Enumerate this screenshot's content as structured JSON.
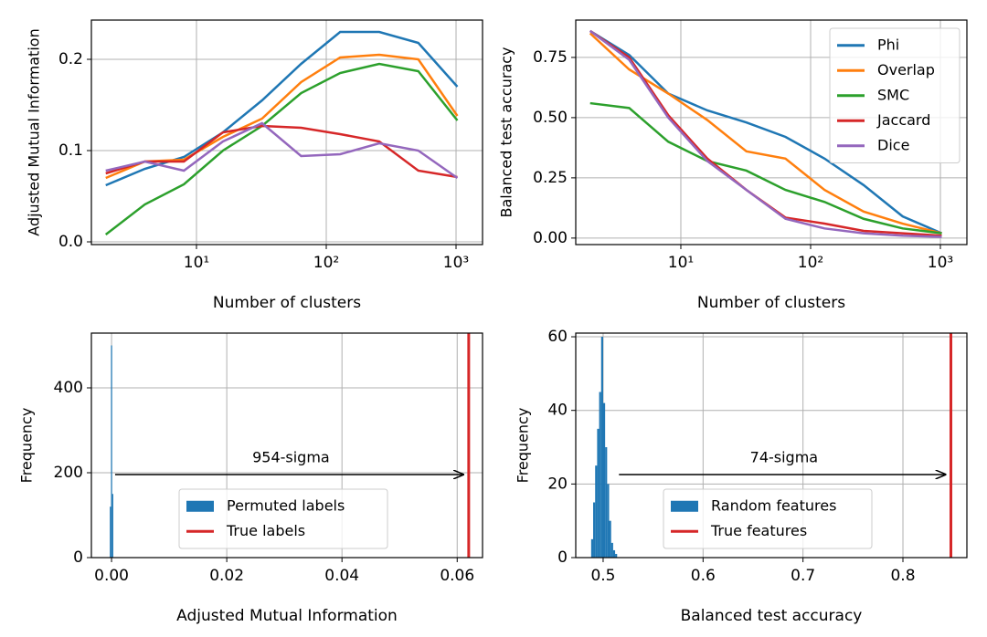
{
  "chart_data": [
    {
      "type": "line",
      "xscale": "log",
      "grid": true,
      "x_label": "Number of clusters",
      "y_label": "Adjusted Mutual Information",
      "xlim": [
        1.55,
        1600
      ],
      "ylim": [
        -0.003,
        0.243
      ],
      "xticks": [
        {
          "value": 10,
          "label": "10¹"
        },
        {
          "value": 100,
          "label": "10²"
        },
        {
          "value": 1000,
          "label": "10³"
        }
      ],
      "yticks": [
        {
          "value": 0,
          "label": "0.0"
        },
        0.1,
        0.2
      ],
      "x": [
        2,
        4,
        8,
        16,
        32,
        64,
        128,
        256,
        512,
        1024
      ],
      "series": [
        {
          "name": "Phi",
          "color": "#1f77b4",
          "values": [
            0.062,
            0.08,
            0.093,
            0.12,
            0.155,
            0.195,
            0.23,
            0.23,
            0.218,
            0.17
          ]
        },
        {
          "name": "Overlap",
          "color": "#ff7f0e",
          "values": [
            0.07,
            0.088,
            0.09,
            0.115,
            0.135,
            0.175,
            0.202,
            0.205,
            0.2,
            0.138
          ]
        },
        {
          "name": "SMC",
          "color": "#2ca02c",
          "values": [
            0.008,
            0.041,
            0.063,
            0.1,
            0.127,
            0.163,
            0.185,
            0.195,
            0.187,
            0.133
          ]
        },
        {
          "name": "Jaccard",
          "color": "#d62728",
          "values": [
            0.075,
            0.088,
            0.088,
            0.12,
            0.127,
            0.125,
            0.118,
            0.11,
            0.078,
            0.071
          ]
        },
        {
          "name": "Dice",
          "color": "#9467bd",
          "values": [
            0.078,
            0.088,
            0.078,
            0.11,
            0.13,
            0.094,
            0.096,
            0.108,
            0.1,
            0.07
          ]
        }
      ]
    },
    {
      "type": "line",
      "xscale": "log",
      "grid": true,
      "legend": "upper right",
      "x_label": "Number of clusters",
      "y_label": "Balanced test accuracy",
      "xlim": [
        1.55,
        1600
      ],
      "ylim": [
        -0.027,
        0.905
      ],
      "xticks": [
        {
          "value": 10,
          "label": "10¹"
        },
        {
          "value": 100,
          "label": "10²"
        },
        {
          "value": 1000,
          "label": "10³"
        }
      ],
      "yticks": [
        {
          "value": 0,
          "label": "0.00"
        },
        0.25,
        {
          "value": 0.5,
          "label": "0.50"
        },
        0.75
      ],
      "x": [
        2,
        4,
        8,
        16,
        32,
        64,
        128,
        256,
        512,
        1024
      ],
      "series": [
        {
          "name": "Phi",
          "color": "#1f77b4",
          "values": [
            0.86,
            0.76,
            0.6,
            0.53,
            0.48,
            0.42,
            0.33,
            0.22,
            0.09,
            0.02
          ]
        },
        {
          "name": "Overlap",
          "color": "#ff7f0e",
          "values": [
            0.85,
            0.7,
            0.6,
            0.49,
            0.36,
            0.33,
            0.2,
            0.11,
            0.06,
            0.02
          ]
        },
        {
          "name": "SMC",
          "color": "#2ca02c",
          "values": [
            0.56,
            0.54,
            0.4,
            0.32,
            0.28,
            0.2,
            0.15,
            0.08,
            0.04,
            0.02
          ]
        },
        {
          "name": "Jaccard",
          "color": "#d62728",
          "values": [
            0.86,
            0.75,
            0.51,
            0.33,
            0.2,
            0.085,
            0.06,
            0.03,
            0.02,
            0.01
          ]
        },
        {
          "name": "Dice",
          "color": "#9467bd",
          "values": [
            0.86,
            0.74,
            0.5,
            0.32,
            0.2,
            0.08,
            0.04,
            0.02,
            0.01,
            0.005
          ]
        }
      ]
    },
    {
      "type": "histogram",
      "grid": true,
      "legend": "lower center",
      "x_label": "Adjusted Mutual Information",
      "y_label": "Frequency",
      "xlim": [
        -0.0035,
        0.0644
      ],
      "ylim": [
        0,
        529
      ],
      "xticks": [
        {
          "value": 0,
          "label": "0.00"
        },
        0.02,
        0.04,
        0.06
      ],
      "yticks": [
        0,
        200,
        400
      ],
      "series": [
        {
          "name": "Permuted labels",
          "color": "#1f77b4",
          "bins": [
            -0.0003,
            -0.0001,
            0.0001,
            0.0003
          ],
          "counts": [
            120,
            500,
            150
          ]
        }
      ],
      "reference_line": {
        "name": "True labels",
        "color": "#d62728",
        "x": 0.062
      },
      "annotation": "954-sigma"
    },
    {
      "type": "histogram",
      "grid": true,
      "legend": "lower center",
      "x_label": "Balanced test accuracy",
      "y_label": "Frequency",
      "xlim": [
        0.4726,
        0.864
      ],
      "ylim": [
        0,
        61
      ],
      "xticks": [
        0.5,
        0.6,
        0.7,
        0.8
      ],
      "yticks": [
        0,
        20,
        40,
        60
      ],
      "series": [
        {
          "name": "Random features",
          "color": "#1f77b4",
          "bins": [
            0.488,
            0.49,
            0.492,
            0.494,
            0.496,
            0.498,
            0.5,
            0.502,
            0.504,
            0.506,
            0.508,
            0.51,
            0.512,
            0.514
          ],
          "counts": [
            5,
            15,
            25,
            35,
            45,
            60,
            42,
            30,
            20,
            10,
            4,
            2,
            1
          ]
        }
      ],
      "reference_line": {
        "name": "True features",
        "color": "#d62728",
        "x": 0.848
      },
      "annotation": "74-sigma"
    }
  ]
}
